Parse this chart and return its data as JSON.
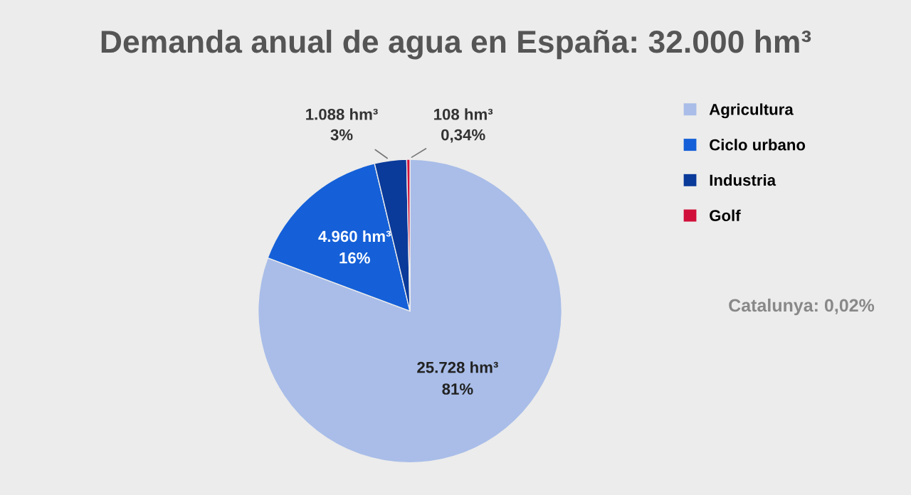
{
  "chart_data": {
    "type": "pie",
    "title": "Demanda anual de agua en España: 32.000 hm³",
    "categories": [
      "Agricultura",
      "Ciclo urbano",
      "Industria",
      "Golf"
    ],
    "values": [
      25728,
      4960,
      1088,
      108
    ],
    "colors": [
      "#a9bde8",
      "#1560d8",
      "#0a3a9a",
      "#d0103a"
    ],
    "value_labels": [
      "25.728 hm³\n81%",
      "4.960 hm³\n16%",
      "1.088 hm³\n3%",
      "108 hm³\n0,34%"
    ],
    "annotations": [
      "Catalunya: 0,02%"
    ],
    "legend": "top right"
  }
}
